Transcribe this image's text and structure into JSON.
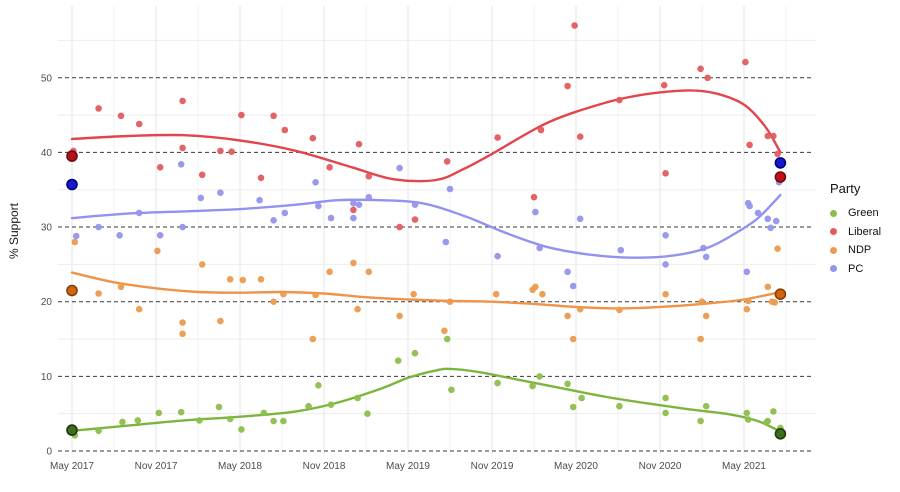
{
  "legend": {
    "title": "Party",
    "items": [
      {
        "label": "Green",
        "color": "#8dbe4b"
      },
      {
        "label": "Liberal",
        "color": "#e25b5e"
      },
      {
        "label": "NDP",
        "color": "#ec9a4e"
      },
      {
        "label": "PC",
        "color": "#9595ec"
      }
    ]
  },
  "chart_data": {
    "type": "scatter",
    "title": "",
    "xlabel": "",
    "ylabel": "% Support",
    "x_unit": "months_since_May_2017",
    "xlim": [
      -1,
      53.1
    ],
    "ylim": [
      -0.6,
      59.6
    ],
    "grid": "dashed major horizontals at 0-50, light minor gridlines",
    "legend_position": "right",
    "x_ticks": [
      {
        "m": 0,
        "label": "May 2017"
      },
      {
        "m": 6,
        "label": "Nov 2017"
      },
      {
        "m": 12,
        "label": "May 2018"
      },
      {
        "m": 18,
        "label": "Nov 2018"
      },
      {
        "m": 24,
        "label": "May 2019"
      },
      {
        "m": 30,
        "label": "Nov 2019"
      },
      {
        "m": 36,
        "label": "May 2020"
      },
      {
        "m": 42,
        "label": "Nov 2020"
      },
      {
        "m": 48,
        "label": "May 2021"
      }
    ],
    "x_minor_ticks": [
      3,
      9,
      15,
      21,
      27,
      33,
      39,
      45,
      51
    ],
    "y_ticks": [
      0,
      10,
      20,
      30,
      40,
      50
    ],
    "y_minor_ticks": [
      5,
      15,
      25,
      35,
      45,
      55
    ],
    "series": [
      {
        "name": "Green",
        "point_color": "#8dbe4b",
        "line_color": "#7cb53e",
        "points": [
          [
            0.2,
            2.1
          ],
          [
            1.9,
            2.7
          ],
          [
            3.6,
            3.9
          ],
          [
            4.7,
            4.1
          ],
          [
            6.2,
            5.1
          ],
          [
            7.8,
            5.2
          ],
          [
            9.1,
            4.1
          ],
          [
            10.5,
            5.9
          ],
          [
            11.3,
            4.3
          ],
          [
            12.1,
            2.9
          ],
          [
            13.7,
            5.1
          ],
          [
            14.4,
            4.0
          ],
          [
            15.1,
            4.0
          ],
          [
            16.9,
            6.0
          ],
          [
            17.6,
            8.8
          ],
          [
            18.5,
            6.2
          ],
          [
            20.4,
            7.1
          ],
          [
            21.1,
            5.0
          ],
          [
            23.3,
            12.1
          ],
          [
            24.5,
            13.1
          ],
          [
            26.8,
            15.0
          ],
          [
            27.1,
            8.2
          ],
          [
            30.4,
            9.1
          ],
          [
            32.9,
            8.7
          ],
          [
            33.4,
            10.0
          ],
          [
            35.4,
            9.0
          ],
          [
            35.8,
            5.9
          ],
          [
            36.4,
            7.1
          ],
          [
            39.1,
            6.0
          ],
          [
            42.4,
            7.1
          ],
          [
            42.4,
            5.1
          ],
          [
            44.9,
            4.0
          ],
          [
            45.3,
            6.0
          ],
          [
            48.2,
            5.1
          ],
          [
            48.3,
            4.2
          ],
          [
            49.6,
            3.8
          ],
          [
            49.7,
            4.0
          ],
          [
            50.1,
            5.3
          ],
          [
            50.6,
            3.1
          ]
        ],
        "trend": [
          [
            0,
            2.7
          ],
          [
            4,
            3.4
          ],
          [
            8,
            4.1
          ],
          [
            12,
            4.6
          ],
          [
            16,
            5.3
          ],
          [
            19,
            6.5
          ],
          [
            22,
            8.3
          ],
          [
            24,
            9.8
          ],
          [
            26,
            10.8
          ],
          [
            27,
            11.0
          ],
          [
            29,
            10.6
          ],
          [
            32,
            9.5
          ],
          [
            35,
            8.4
          ],
          [
            38,
            7.3
          ],
          [
            41,
            6.4
          ],
          [
            44,
            5.6
          ],
          [
            47,
            4.9
          ],
          [
            49,
            4.0
          ],
          [
            50.6,
            2.6
          ]
        ]
      },
      {
        "name": "Liberal",
        "point_color": "#e25b5e",
        "line_color": "#e2464c",
        "points": [
          [
            0.1,
            40.2
          ],
          [
            1.9,
            45.9
          ],
          [
            3.5,
            44.9
          ],
          [
            4.8,
            43.8
          ],
          [
            6.3,
            38.0
          ],
          [
            7.9,
            46.9
          ],
          [
            7.9,
            40.6
          ],
          [
            9.3,
            37.0
          ],
          [
            10.6,
            40.2
          ],
          [
            11.4,
            40.1
          ],
          [
            12.1,
            45.0
          ],
          [
            13.5,
            36.6
          ],
          [
            14.4,
            44.9
          ],
          [
            15.2,
            43.0
          ],
          [
            17.2,
            41.9
          ],
          [
            18.4,
            38.0
          ],
          [
            20.1,
            32.3
          ],
          [
            20.5,
            41.1
          ],
          [
            21.2,
            36.8
          ],
          [
            23.4,
            30.0
          ],
          [
            24.5,
            31.0
          ],
          [
            26.8,
            38.8
          ],
          [
            30.4,
            42.0
          ],
          [
            33.0,
            34.0
          ],
          [
            33.5,
            43.0
          ],
          [
            35.4,
            48.9
          ],
          [
            35.9,
            57.0
          ],
          [
            36.3,
            42.1
          ],
          [
            39.1,
            47.0
          ],
          [
            42.3,
            49.0
          ],
          [
            42.4,
            37.2
          ],
          [
            44.9,
            51.2
          ],
          [
            45.4,
            50.0
          ],
          [
            48.1,
            52.1
          ],
          [
            48.4,
            41.0
          ],
          [
            49.7,
            42.2
          ],
          [
            50.1,
            42.2
          ],
          [
            50.4,
            39.8
          ]
        ],
        "trend": [
          [
            0,
            41.8
          ],
          [
            4,
            42.2
          ],
          [
            8,
            42.3
          ],
          [
            12,
            41.6
          ],
          [
            16,
            40.2
          ],
          [
            20,
            38.0
          ],
          [
            23,
            36.4
          ],
          [
            26,
            36.3
          ],
          [
            28,
            37.8
          ],
          [
            30,
            39.8
          ],
          [
            34,
            44.0
          ],
          [
            38,
            46.6
          ],
          [
            41,
            47.8
          ],
          [
            44,
            48.3
          ],
          [
            46,
            47.9
          ],
          [
            48,
            46.4
          ],
          [
            49.5,
            43.5
          ],
          [
            50.6,
            40.0
          ]
        ]
      },
      {
        "name": "NDP",
        "point_color": "#ec9a4e",
        "line_color": "#ef9349",
        "points": [
          [
            0.2,
            28.0
          ],
          [
            1.9,
            21.1
          ],
          [
            3.5,
            22.0
          ],
          [
            4.8,
            19.0
          ],
          [
            6.1,
            26.8
          ],
          [
            7.9,
            17.2
          ],
          [
            7.9,
            15.7
          ],
          [
            9.3,
            25.0
          ],
          [
            10.6,
            17.4
          ],
          [
            11.3,
            23.0
          ],
          [
            12.2,
            22.9
          ],
          [
            13.5,
            23.0
          ],
          [
            14.4,
            20.0
          ],
          [
            15.1,
            21.0
          ],
          [
            17.2,
            15.0
          ],
          [
            17.4,
            20.9
          ],
          [
            18.4,
            24.0
          ],
          [
            20.1,
            25.2
          ],
          [
            20.4,
            19.0
          ],
          [
            21.2,
            24.0
          ],
          [
            23.4,
            18.1
          ],
          [
            24.4,
            21.0
          ],
          [
            26.6,
            16.1
          ],
          [
            27.0,
            20.0
          ],
          [
            30.3,
            21.0
          ],
          [
            32.9,
            21.6
          ],
          [
            33.1,
            22.0
          ],
          [
            33.6,
            21.0
          ],
          [
            35.4,
            18.1
          ],
          [
            35.8,
            15.0
          ],
          [
            36.3,
            19.0
          ],
          [
            39.1,
            18.9
          ],
          [
            42.4,
            21.0
          ],
          [
            44.9,
            15.0
          ],
          [
            45.0,
            20.0
          ],
          [
            45.3,
            18.1
          ],
          [
            48.2,
            19.0
          ],
          [
            48.3,
            20.1
          ],
          [
            49.7,
            22.0
          ],
          [
            50.0,
            20.0
          ],
          [
            50.2,
            19.9
          ],
          [
            50.4,
            27.1
          ]
        ],
        "trend": [
          [
            0,
            23.9
          ],
          [
            3,
            22.6
          ],
          [
            6,
            21.8
          ],
          [
            9,
            21.3
          ],
          [
            12,
            21.2
          ],
          [
            15,
            21.3
          ],
          [
            18,
            21.1
          ],
          [
            21,
            20.6
          ],
          [
            24,
            20.3
          ],
          [
            27,
            20.1
          ],
          [
            30,
            20.0
          ],
          [
            33,
            19.7
          ],
          [
            36,
            19.3
          ],
          [
            39,
            19.1
          ],
          [
            42,
            19.3
          ],
          [
            45,
            19.7
          ],
          [
            48,
            20.3
          ],
          [
            50.6,
            21.3
          ]
        ]
      },
      {
        "name": "PC",
        "point_color": "#9595ec",
        "line_color": "#9292ef",
        "points": [
          [
            0.3,
            28.8
          ],
          [
            1.9,
            30.0
          ],
          [
            3.4,
            28.9
          ],
          [
            4.8,
            31.9
          ],
          [
            6.3,
            28.9
          ],
          [
            7.8,
            38.4
          ],
          [
            7.9,
            30.0
          ],
          [
            9.2,
            33.9
          ],
          [
            10.6,
            34.6
          ],
          [
            13.4,
            33.6
          ],
          [
            14.4,
            30.9
          ],
          [
            15.2,
            31.9
          ],
          [
            17.4,
            36.0
          ],
          [
            17.6,
            32.8
          ],
          [
            18.5,
            31.2
          ],
          [
            20.1,
            33.2
          ],
          [
            20.1,
            31.2
          ],
          [
            20.5,
            33.0
          ],
          [
            21.2,
            34.0
          ],
          [
            23.4,
            37.9
          ],
          [
            24.5,
            33.0
          ],
          [
            26.7,
            28.0
          ],
          [
            27.0,
            35.1
          ],
          [
            30.4,
            26.1
          ],
          [
            33.1,
            32.0
          ],
          [
            33.4,
            27.2
          ],
          [
            35.4,
            24.0
          ],
          [
            35.8,
            22.1
          ],
          [
            36.3,
            31.1
          ],
          [
            39.2,
            26.9
          ],
          [
            42.4,
            28.9
          ],
          [
            42.4,
            25.0
          ],
          [
            45.1,
            27.2
          ],
          [
            45.3,
            26.0
          ],
          [
            48.2,
            24.0
          ],
          [
            48.3,
            33.2
          ],
          [
            48.4,
            32.8
          ],
          [
            49.0,
            31.9
          ],
          [
            49.7,
            31.1
          ],
          [
            49.9,
            29.9
          ],
          [
            50.3,
            30.8
          ],
          [
            50.5,
            36.0
          ]
        ],
        "trend": [
          [
            0,
            31.2
          ],
          [
            4,
            31.8
          ],
          [
            8,
            32.1
          ],
          [
            12,
            32.4
          ],
          [
            16,
            33.0
          ],
          [
            19,
            33.6
          ],
          [
            22,
            33.6
          ],
          [
            25,
            33.2
          ],
          [
            28,
            31.5
          ],
          [
            31,
            29.2
          ],
          [
            34,
            27.3
          ],
          [
            37,
            26.3
          ],
          [
            40,
            25.9
          ],
          [
            43,
            26.2
          ],
          [
            45.5,
            27.3
          ],
          [
            47.5,
            29.3
          ],
          [
            49,
            31.2
          ],
          [
            50.6,
            34.3
          ]
        ]
      }
    ],
    "election_results": [
      {
        "party": "Liberal",
        "m": 0,
        "value": 39.5,
        "fill": "#b01317",
        "stroke": "#6e0a0d"
      },
      {
        "party": "PC",
        "m": 0,
        "value": 35.7,
        "fill": "#1717cd",
        "stroke": "#00007d"
      },
      {
        "party": "NDP",
        "m": 0,
        "value": 21.5,
        "fill": "#cf650f",
        "stroke": "#843d06"
      },
      {
        "party": "Green",
        "m": 0,
        "value": 2.8,
        "fill": "#3f6c1d",
        "stroke": "#1d3a0a"
      },
      {
        "party": "PC",
        "m": 50.6,
        "value": 38.6,
        "fill": "#1717cd",
        "stroke": "#00007d"
      },
      {
        "party": "Liberal",
        "m": 50.6,
        "value": 36.7,
        "fill": "#c00f16",
        "stroke": "#6e0a0d"
      },
      {
        "party": "NDP",
        "m": 50.6,
        "value": 21.0,
        "fill": "#cf650f",
        "stroke": "#843d06"
      },
      {
        "party": "Green",
        "m": 50.6,
        "value": 2.3,
        "fill": "#3f6c1d",
        "stroke": "#1d3a0a"
      }
    ],
    "style": {
      "major_hgrid_color": "#3a3a3a",
      "minor_hgrid_color": "#ededed",
      "major_vgrid_color": "#e4e4e4",
      "minor_vgrid_color": "#f2f2f2",
      "tick_label_color": "#4d4d4d"
    }
  }
}
